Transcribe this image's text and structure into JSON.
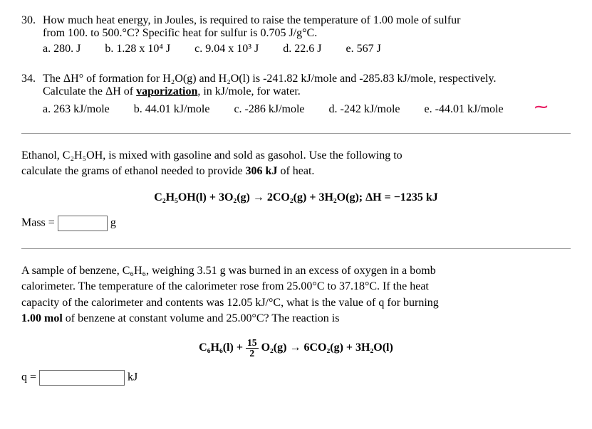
{
  "q30": {
    "number": "30.",
    "text1": "How much heat energy, in Joules, is required to raise the temperature of 1.00 mole of sulfur",
    "text2": "from 100. to 500.°C? Specific heat for sulfur is 0.705 J/g°C.",
    "opts": {
      "a": "a. 280. J",
      "b": "b. 1.28 x 10⁴ J",
      "c": "c. 9.04 x 10³ J",
      "d": "d. 22.6 J",
      "e": "e. 567 J"
    }
  },
  "q34": {
    "number": "34.",
    "text1": "The ΔH° of formation for H₂O(g) and H₂O(l) is -241.82 kJ/mole and -285.83 kJ/mole, respectively.",
    "text2a": "Calculate the ΔH of ",
    "text2b": "vaporization",
    "text2c": ", in kJ/mole, for water.",
    "opts": {
      "a": "a. 263 kJ/mole",
      "b": "b. 44.01 kJ/mole",
      "c": "c. -286 kJ/mole",
      "d": "d. -242 kJ/mole",
      "e": "e. -44.01 kJ/mole"
    },
    "mark": "⁓"
  },
  "ethanol": {
    "text1a": "Ethanol, ",
    "formula": "C₂H₅OH",
    "text1b": ", is mixed with gasoline and sold as gasohol. Use the following to",
    "text2a": "calculate the grams of ethanol needed to provide ",
    "heat": "306 kJ",
    "text2b": " of heat.",
    "equation": "C₂H₅OH(l) + 3O₂(g) → 2CO₂(g) + 3H₂O(g);   ΔH = −1235 kJ",
    "masslabel": "Mass =",
    "unit": "g"
  },
  "benzene": {
    "text1a": "A sample of benzene, ",
    "formula": "C₆H₆",
    "text1b": ", weighing 3.51 g was burned in an excess of oxygen in a bomb",
    "text2": "calorimeter. The temperature of the calorimeter rose from 25.00°C to 37.18°C. If the heat",
    "text3": "capacity of the calorimeter and contents was 12.05 kJ/°C, what is the value of q for burning",
    "text4a": "1.00 mol",
    "text4b": " of benzene at constant volume and 25.00°C? The reaction is",
    "eq_left": "C₆H₆(l) + ",
    "frac_num": "15",
    "frac_den": "2",
    "eq_right": " O₂(g) → 6CO₂(g) + 3H₂O(l)",
    "qlabel": "q =",
    "unit": "kJ"
  }
}
